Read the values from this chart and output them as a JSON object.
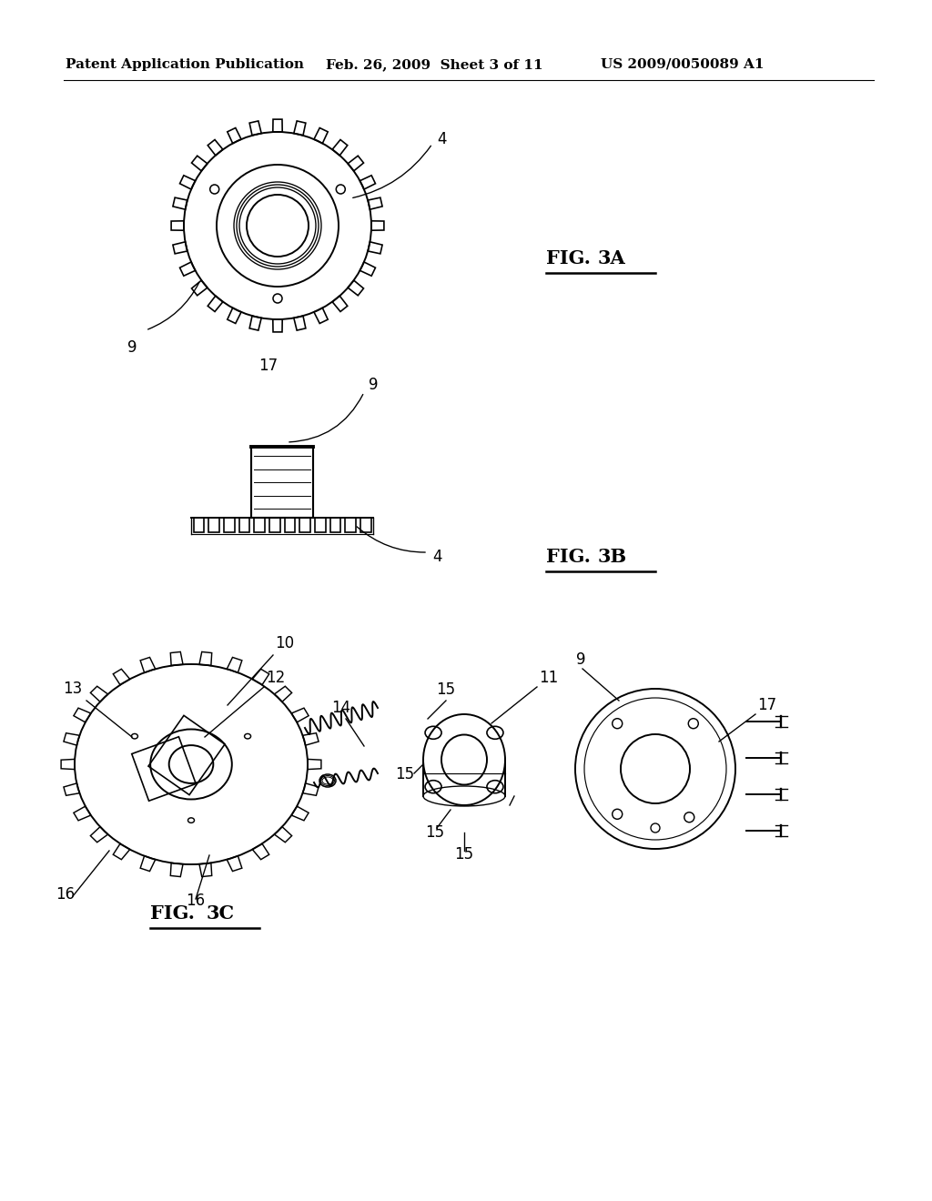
{
  "bg_color": "#ffffff",
  "header_left": "Patent Application Publication",
  "header_mid": "Feb. 26, 2009  Sheet 3 of 11",
  "header_right": "US 2009/0050089 A1",
  "fig3a_label": "FIG.   3A",
  "fig3b_label": "FIG.   3B",
  "fig3c_label": "FIG.   3C",
  "lc": "#000000",
  "lw": 1.4,
  "header_fontsize": 11,
  "label_fontsize": 12,
  "fig_label_fontsize": 15
}
